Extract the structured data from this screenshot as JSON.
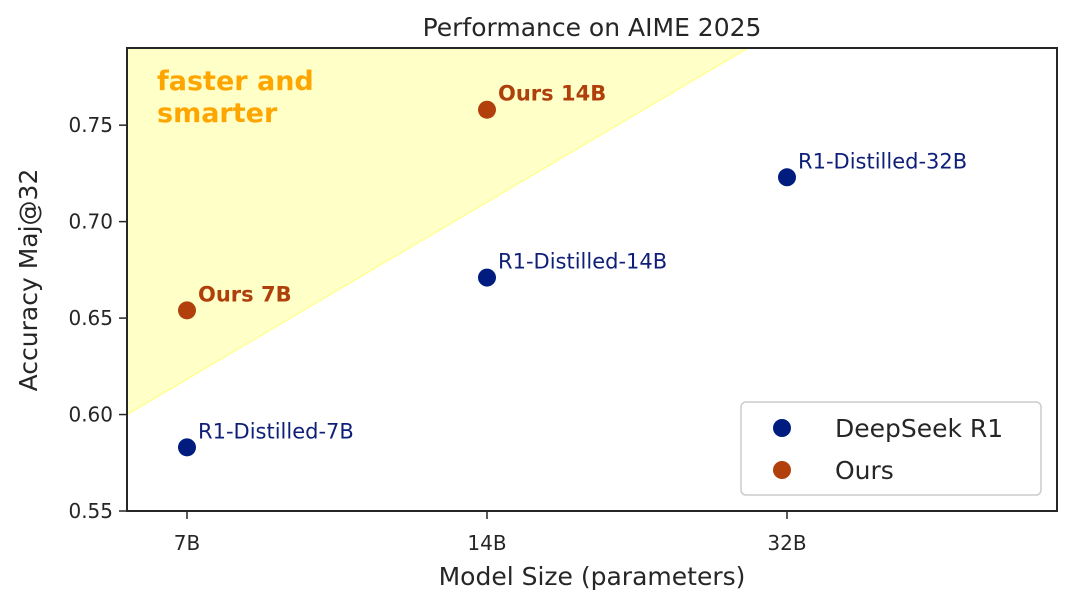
{
  "chart_data": {
    "type": "scatter",
    "title": "Performance on AIME 2025",
    "xlabel": "Model Size (parameters)",
    "ylabel": "Accuracy Maj@32",
    "x_categories": [
      "7B",
      "14B",
      "32B"
    ],
    "ylim": [
      0.55,
      0.79
    ],
    "yticks": [
      "0.55",
      "0.60",
      "0.65",
      "0.70",
      "0.75"
    ],
    "grid": false,
    "legend_position": "bottom-right",
    "series": [
      {
        "name": "DeepSeek R1",
        "color": "#001c7f",
        "label_color": "#0f1f78",
        "points": [
          {
            "x": "7B",
            "y": 0.583,
            "label": "R1-Distilled-7B"
          },
          {
            "x": "14B",
            "y": 0.671,
            "label": "R1-Distilled-14B"
          },
          {
            "x": "32B",
            "y": 0.723,
            "label": "R1-Distilled-32B"
          }
        ]
      },
      {
        "name": "Ours",
        "color": "#b1400d",
        "label_color": "#b0400b",
        "points": [
          {
            "x": "7B",
            "y": 0.654,
            "label": "Ours 7B"
          },
          {
            "x": "14B",
            "y": 0.758,
            "label": "Ours 14B"
          }
        ]
      }
    ],
    "annotation": {
      "lines": [
        "faster and",
        "smarter"
      ],
      "color": "#ffa500",
      "region_fill": "#ffffc8",
      "region_edge": "#ffff99"
    }
  }
}
